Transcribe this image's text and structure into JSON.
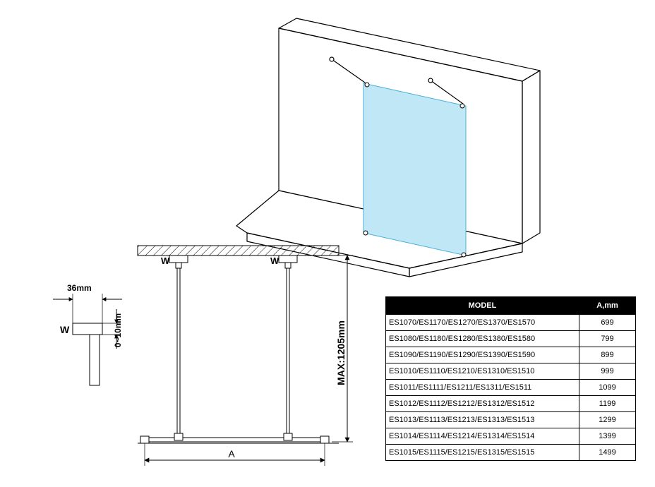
{
  "diagram": {
    "iso_view": {
      "glass_color": "#bfe7f5",
      "glass_edge": "#49b0d6",
      "wall_stroke": "#000000",
      "wall_stroke_width": 1.2
    },
    "front_view": {
      "stroke": "#000000",
      "stroke_width": 1,
      "hatch_spacing": 6,
      "label_W": "W",
      "dim_A": "A",
      "dim_height": "MAX:1205mm"
    },
    "detail_view": {
      "dim_36": "36mm",
      "dim_0_10": "0~10mm",
      "label_W": "W"
    }
  },
  "table": {
    "headers": {
      "model": "MODEL",
      "a": "A,mm"
    },
    "rows": [
      {
        "model": "ES1070/ES1170/ES1270/ES1370/ES1570",
        "a": "699"
      },
      {
        "model": "ES1080/ES1180/ES1280/ES1380/ES1580",
        "a": "799"
      },
      {
        "model": "ES1090/ES1190/ES1290/ES1390/ES1590",
        "a": "899"
      },
      {
        "model": "ES1010/ES1110/ES1210/ES1310/ES1510",
        "a": "999"
      },
      {
        "model": "ES1011/ES1111/ES1211/ES1311/ES1511",
        "a": "1099"
      },
      {
        "model": "ES1012/ES1112/ES1212/ES1312/ES1512",
        "a": "1199"
      },
      {
        "model": "ES1013/ES1113/ES1213/ES1313/ES1513",
        "a": "1299"
      },
      {
        "model": "ES1014/ES1114/ES1214/ES1314/ES1514",
        "a": "1399"
      },
      {
        "model": "ES1015/ES1115/ES1215/ES1315/ES1515",
        "a": "1499"
      }
    ]
  }
}
